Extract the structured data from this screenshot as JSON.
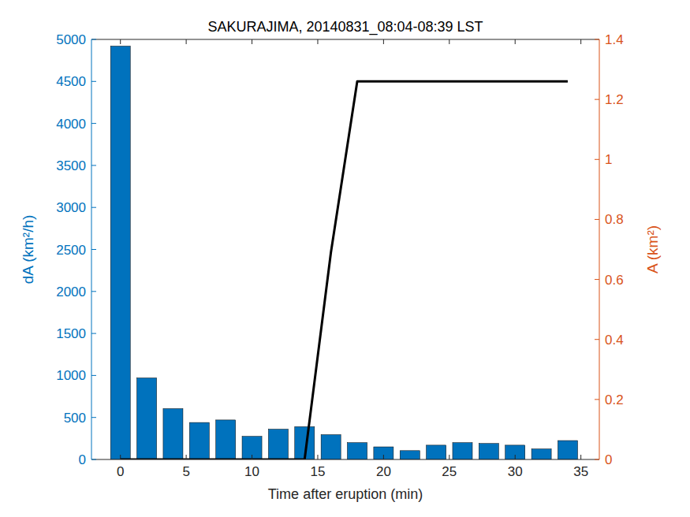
{
  "chart_data": {
    "type": "bar",
    "title": "SAKURAJIMA, 20140831_08:04-08:39 LST",
    "x_label": "Time after eruption (min)",
    "y_label": "dA (km²/h)",
    "y2_label": "A (km²)",
    "x": [
      0,
      2,
      4,
      6,
      8,
      10,
      12,
      14,
      16,
      18,
      20,
      22,
      24,
      26,
      28,
      30,
      32,
      34
    ],
    "series": [
      {
        "type": "bar",
        "color": "#0072bd",
        "values": [
          4920,
          970,
          605,
          440,
          470,
          275,
          360,
          390,
          295,
          200,
          150,
          105,
          170,
          200,
          190,
          170,
          125,
          225
        ]
      },
      {
        "type": "line",
        "axis": "y2",
        "color": "#000000",
        "values": [
          0,
          0,
          0,
          0,
          0,
          0,
          0,
          0,
          0.69,
          1.26,
          1.26,
          1.26,
          1.26,
          1.26,
          1.26,
          1.26,
          1.26,
          1.26
        ]
      }
    ],
    "xlim": [
      -2.2,
      36.4
    ],
    "xticks": [
      0,
      5,
      10,
      15,
      20,
      25,
      30,
      35
    ],
    "ylim": [
      0,
      5000
    ],
    "yticks": [
      0,
      500,
      1000,
      1500,
      2000,
      2500,
      3000,
      3500,
      4000,
      4500,
      5000
    ],
    "y2lim": [
      0,
      1.4
    ],
    "y2ticks": [
      0,
      0.2,
      0.4,
      0.6,
      0.8,
      1,
      1.2,
      1.4
    ],
    "grid": false
  }
}
